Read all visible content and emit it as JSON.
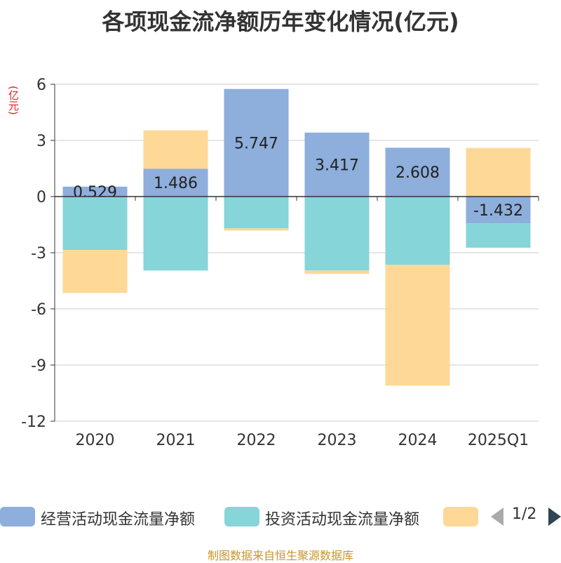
{
  "title": "各项现金流净额历年变化情况(亿元)",
  "unit_label": "(亿元)",
  "legend": [
    {
      "label": "经营活动现金流量净额",
      "color": "#8eaedb"
    },
    {
      "label": "投资活动现金流量净额",
      "color": "#86d5d9"
    },
    {
      "label": "",
      "color": "#fed897"
    }
  ],
  "pager": {
    "text": "1/2"
  },
  "source": "制图数据来自恒生聚源数据库",
  "chart_data": {
    "type": "bar",
    "stacked": true,
    "categories": [
      "2020",
      "2021",
      "2022",
      "2023",
      "2024",
      "2025Q1"
    ],
    "ylim": [
      -12,
      6
    ],
    "yticks": [
      6,
      3,
      0,
      -3,
      -6,
      -9,
      -12
    ],
    "grid": true,
    "legend_position": "bottom",
    "series": [
      {
        "name": "经营活动现金流量净额",
        "color": "#8eaedb",
        "values": [
          0.529,
          1.486,
          5.747,
          3.417,
          2.608,
          -1.432
        ],
        "labels": [
          "0.529",
          "1.486",
          "5.747",
          "3.417",
          "2.608",
          "-1.432"
        ]
      },
      {
        "name": "投资活动现金流量净额",
        "color": "#86d5d9",
        "values": [
          -2.85,
          -3.95,
          -1.7,
          -3.95,
          -3.65,
          -1.3
        ]
      },
      {
        "color": "#fed897",
        "values": [
          -2.3,
          2.05,
          -0.12,
          -0.18,
          -6.45,
          2.6
        ]
      }
    ]
  }
}
